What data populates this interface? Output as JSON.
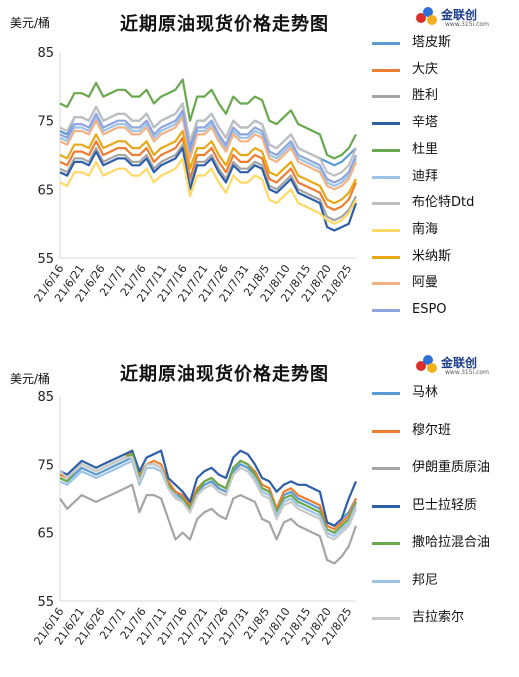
{
  "charts": [
    {
      "title": "近期原油现货价格走势图",
      "unit": "美元/桶",
      "logo": {
        "name": "金联创",
        "sub": "www.315i.com"
      }
    },
    {
      "title": "近期原油现货价格走势图",
      "unit": "美元/桶",
      "logo": {
        "name": "金联创",
        "sub": "www.315i.com"
      }
    }
  ],
  "chart_data": [
    {
      "type": "line",
      "title": "近期原油现货价格走势图",
      "ylabel": "美元/桶",
      "ylim": [
        55,
        85
      ],
      "yticks": [
        55,
        65,
        75,
        85
      ],
      "grid": false,
      "legend_position": "right",
      "x_tick_labels": [
        "21/6/16",
        "21/6/21",
        "21/6/26",
        "21/7/1",
        "21/7/6",
        "21/7/11",
        "21/7/16",
        "21/7/21",
        "21/7/26",
        "21/7/31",
        "21/8/5",
        "21/8/10",
        "21/8/15",
        "21/8/20",
        "21/8/25"
      ],
      "series": [
        {
          "name": "塔皮斯",
          "color": "#5b9bd5",
          "values": [
            73.5,
            73.0,
            75.5,
            75.5,
            75.0,
            77.0,
            75.0,
            75.5,
            76.0,
            76.0,
            75.0,
            75.0,
            76.0,
            74.0,
            75.0,
            75.5,
            76.0,
            77.5,
            71.0,
            75.0,
            75.0,
            76.0,
            74.0,
            72.5,
            75.0,
            74.0,
            74.0,
            75.0,
            74.5,
            71.5,
            71.0,
            72.0,
            73.0,
            71.0,
            70.5,
            70.0,
            69.5,
            69.0,
            68.5,
            69.0,
            70.0,
            71.0
          ]
        },
        {
          "name": "大庆",
          "color": "#ed7d31",
          "values": [
            69.0,
            68.5,
            70.5,
            70.5,
            70.0,
            72.0,
            70.0,
            70.5,
            71.0,
            71.0,
            70.0,
            70.0,
            71.0,
            69.0,
            70.0,
            70.5,
            71.0,
            72.5,
            66.5,
            70.0,
            70.0,
            71.0,
            69.0,
            67.5,
            70.0,
            69.0,
            69.0,
            70.0,
            69.5,
            66.5,
            66.0,
            67.0,
            68.0,
            66.0,
            65.5,
            65.0,
            64.5,
            62.5,
            62.0,
            62.5,
            63.5,
            66.0
          ]
        },
        {
          "name": "胜利",
          "color": "#a5a5a5",
          "values": [
            68.0,
            67.5,
            69.5,
            69.5,
            69.0,
            71.0,
            69.0,
            69.5,
            70.0,
            70.0,
            69.0,
            69.0,
            70.0,
            68.0,
            69.0,
            69.5,
            70.0,
            71.5,
            65.5,
            69.0,
            69.0,
            70.0,
            68.0,
            66.5,
            69.0,
            68.0,
            68.0,
            69.0,
            68.5,
            65.5,
            65.0,
            66.0,
            67.0,
            65.0,
            64.5,
            64.0,
            63.5,
            61.0,
            60.5,
            61.0,
            62.0,
            64.0
          ]
        },
        {
          "name": "辛塔",
          "color": "#2e5ea8",
          "values": [
            67.5,
            67.0,
            69.0,
            69.0,
            68.5,
            70.5,
            68.5,
            69.0,
            69.5,
            69.5,
            68.5,
            68.5,
            69.5,
            67.5,
            68.5,
            69.0,
            69.5,
            71.0,
            65.0,
            68.5,
            68.5,
            69.5,
            67.5,
            66.0,
            68.5,
            67.5,
            67.5,
            68.5,
            68.0,
            65.0,
            64.5,
            65.5,
            66.5,
            64.5,
            64.0,
            63.5,
            63.0,
            59.5,
            59.0,
            59.5,
            60.0,
            63.0
          ]
        },
        {
          "name": "杜里",
          "color": "#6aa84f",
          "values": [
            77.5,
            77.0,
            79.0,
            79.0,
            78.5,
            80.5,
            78.5,
            79.0,
            79.5,
            79.5,
            78.5,
            78.5,
            79.5,
            77.5,
            78.5,
            79.0,
            79.5,
            81.0,
            75.0,
            78.5,
            78.5,
            79.5,
            77.5,
            76.0,
            78.5,
            77.5,
            77.5,
            78.5,
            78.0,
            75.0,
            74.5,
            75.5,
            76.5,
            74.5,
            74.0,
            73.5,
            73.0,
            70.0,
            69.5,
            70.0,
            71.0,
            73.0
          ]
        },
        {
          "name": "迪拜",
          "color": "#9dc3e6",
          "values": [
            72.5,
            72.0,
            74.0,
            74.0,
            73.5,
            75.5,
            73.5,
            74.0,
            74.5,
            74.5,
            73.5,
            73.5,
            74.5,
            72.5,
            73.5,
            74.0,
            74.5,
            76.0,
            70.0,
            73.5,
            73.5,
            74.5,
            72.5,
            71.0,
            73.5,
            72.5,
            72.5,
            73.5,
            73.0,
            70.0,
            69.5,
            70.5,
            71.5,
            69.5,
            69.0,
            68.5,
            68.0,
            66.0,
            65.5,
            66.0,
            67.0,
            69.5
          ]
        },
        {
          "name": "布伦特Dtd",
          "color": "#bfbfbf",
          "values": [
            74.0,
            73.5,
            75.5,
            75.5,
            75.0,
            77.0,
            75.0,
            75.5,
            76.0,
            76.0,
            75.0,
            75.0,
            76.0,
            74.0,
            75.0,
            75.5,
            76.0,
            77.5,
            72.0,
            75.0,
            75.0,
            76.0,
            74.0,
            72.5,
            75.0,
            74.0,
            74.0,
            75.0,
            74.5,
            71.5,
            71.0,
            72.0,
            73.0,
            71.0,
            70.5,
            70.0,
            69.5,
            67.5,
            67.0,
            67.5,
            68.5,
            71.0
          ]
        },
        {
          "name": "南海",
          "color": "#ffd966",
          "values": [
            66.0,
            65.5,
            67.5,
            67.5,
            67.0,
            69.0,
            67.0,
            67.5,
            68.0,
            68.0,
            67.0,
            67.0,
            68.0,
            66.0,
            67.0,
            67.5,
            68.0,
            69.5,
            64.0,
            67.0,
            67.0,
            68.0,
            66.0,
            64.5,
            67.0,
            66.0,
            66.0,
            67.0,
            66.5,
            63.5,
            63.0,
            64.0,
            65.0,
            63.0,
            62.5,
            62.0,
            61.5,
            60.5,
            60.0,
            60.5,
            61.5,
            63.5
          ]
        },
        {
          "name": "米纳斯",
          "color": "#e6a817",
          "values": [
            70.0,
            69.5,
            71.5,
            71.5,
            71.0,
            73.0,
            71.0,
            71.5,
            72.0,
            72.0,
            71.0,
            71.0,
            72.0,
            70.0,
            71.0,
            71.5,
            72.0,
            73.5,
            68.0,
            71.0,
            71.0,
            72.0,
            70.0,
            68.5,
            71.0,
            70.0,
            70.0,
            71.0,
            70.5,
            67.5,
            67.0,
            68.0,
            69.0,
            67.0,
            66.5,
            66.0,
            65.5,
            63.5,
            63.0,
            63.5,
            64.5,
            66.5
          ]
        },
        {
          "name": "阿曼",
          "color": "#f4b183",
          "values": [
            72.0,
            71.5,
            73.5,
            73.5,
            73.0,
            75.0,
            73.0,
            73.5,
            74.0,
            74.0,
            73.0,
            73.0,
            74.0,
            72.0,
            73.0,
            73.5,
            74.0,
            75.5,
            69.5,
            73.0,
            73.0,
            74.0,
            72.0,
            70.5,
            73.0,
            72.0,
            72.0,
            73.0,
            72.5,
            69.5,
            69.0,
            70.0,
            71.0,
            69.0,
            68.5,
            68.0,
            67.5,
            65.5,
            65.0,
            65.5,
            66.5,
            69.0
          ]
        },
        {
          "name": "ESPO",
          "color": "#8fa5e0",
          "values": [
            73.0,
            72.5,
            74.5,
            74.5,
            74.0,
            76.0,
            74.0,
            74.5,
            75.0,
            75.0,
            74.0,
            74.0,
            75.0,
            73.0,
            74.0,
            74.5,
            75.0,
            76.5,
            70.5,
            74.0,
            74.0,
            75.0,
            73.0,
            71.5,
            74.0,
            73.0,
            73.0,
            74.0,
            73.5,
            70.5,
            70.0,
            71.0,
            72.0,
            70.0,
            69.5,
            69.0,
            68.5,
            66.5,
            66.0,
            66.5,
            67.5,
            70.0
          ]
        }
      ]
    },
    {
      "type": "line",
      "title": "近期原油现货价格走势图",
      "ylabel": "美元/桶",
      "ylim": [
        55,
        85
      ],
      "yticks": [
        55,
        65,
        75,
        85
      ],
      "grid": false,
      "legend_position": "right",
      "x_tick_labels": [
        "21/6/16",
        "21/6/21",
        "21/6/26",
        "21/7/1",
        "21/7/6",
        "21/7/11",
        "21/7/16",
        "21/7/21",
        "21/7/26",
        "21/7/31",
        "21/8/5",
        "21/8/10",
        "21/8/15",
        "21/8/20",
        "21/8/25"
      ],
      "series": [
        {
          "name": "马林",
          "color": "#5b9bd5",
          "values": [
            73.0,
            72.5,
            73.5,
            74.5,
            74.0,
            73.5,
            74.0,
            74.5,
            75.0,
            75.5,
            76.0,
            72.5,
            75.0,
            75.0,
            74.5,
            72.0,
            71.0,
            70.0,
            68.5,
            71.0,
            72.0,
            72.5,
            71.5,
            71.0,
            74.0,
            75.0,
            74.5,
            73.5,
            71.5,
            71.0,
            68.0,
            70.5,
            71.0,
            70.0,
            69.5,
            69.0,
            68.5,
            66.5,
            66.0,
            67.0,
            68.0,
            70.0
          ]
        },
        {
          "name": "穆尔班",
          "color": "#ed7d31",
          "values": [
            73.5,
            73.0,
            74.0,
            75.0,
            74.5,
            74.0,
            74.5,
            75.0,
            75.5,
            76.0,
            77.0,
            73.5,
            75.0,
            75.5,
            75.0,
            72.5,
            71.0,
            70.5,
            69.0,
            71.5,
            72.5,
            73.0,
            72.0,
            71.5,
            74.5,
            75.5,
            75.0,
            74.0,
            72.0,
            71.5,
            68.5,
            71.0,
            71.5,
            70.5,
            70.0,
            69.5,
            69.0,
            66.0,
            65.5,
            66.5,
            67.5,
            70.0
          ]
        },
        {
          "name": "伊朗重质原油",
          "color": "#a5a5a5",
          "values": [
            70.0,
            68.5,
            69.5,
            70.5,
            70.0,
            69.5,
            70.0,
            70.5,
            71.0,
            71.5,
            72.0,
            68.0,
            70.5,
            70.5,
            70.0,
            67.0,
            64.0,
            65.0,
            64.0,
            67.0,
            68.0,
            68.5,
            67.5,
            67.0,
            70.0,
            70.5,
            70.0,
            69.5,
            67.0,
            66.5,
            64.0,
            66.5,
            67.0,
            66.0,
            65.5,
            65.0,
            64.5,
            61.0,
            60.5,
            61.5,
            63.0,
            66.0
          ]
        },
        {
          "name": "巴士拉轻质",
          "color": "#2e5ea8",
          "values": [
            74.0,
            73.5,
            74.5,
            75.5,
            75.0,
            74.5,
            75.0,
            75.5,
            76.0,
            76.5,
            77.0,
            74.0,
            76.0,
            76.5,
            77.0,
            73.0,
            72.0,
            71.0,
            69.5,
            73.0,
            74.0,
            74.5,
            73.5,
            73.0,
            76.0,
            77.0,
            76.5,
            75.0,
            73.0,
            72.5,
            71.0,
            72.0,
            72.5,
            72.0,
            72.0,
            71.5,
            71.0,
            66.5,
            66.0,
            67.0,
            70.0,
            72.5
          ]
        },
        {
          "name": "撒哈拉混合油",
          "color": "#6aa84f",
          "values": [
            73.0,
            72.5,
            74.0,
            75.0,
            74.5,
            74.0,
            74.5,
            75.0,
            75.5,
            76.0,
            76.5,
            73.0,
            75.0,
            75.0,
            74.5,
            72.0,
            70.5,
            70.0,
            68.5,
            71.0,
            72.5,
            73.0,
            72.0,
            71.5,
            74.5,
            75.5,
            75.0,
            73.5,
            71.5,
            71.0,
            68.0,
            70.0,
            70.5,
            69.5,
            69.0,
            68.5,
            68.0,
            65.5,
            65.0,
            66.0,
            67.0,
            69.5
          ]
        },
        {
          "name": "邦尼",
          "color": "#9dc3e6",
          "values": [
            72.5,
            72.0,
            73.0,
            74.0,
            73.5,
            73.0,
            73.5,
            74.0,
            74.5,
            75.0,
            75.5,
            72.0,
            74.5,
            74.5,
            74.0,
            71.5,
            70.5,
            69.5,
            68.0,
            70.5,
            71.5,
            72.0,
            71.0,
            70.5,
            73.5,
            74.5,
            74.0,
            73.0,
            71.0,
            70.5,
            67.5,
            69.5,
            70.0,
            69.0,
            68.5,
            68.0,
            67.5,
            65.0,
            64.5,
            65.5,
            66.5,
            69.0
          ]
        },
        {
          "name": "吉拉索尔",
          "color": "#c9c9c9",
          "values": [
            74.0,
            73.0,
            74.0,
            75.0,
            74.5,
            74.0,
            74.5,
            75.0,
            75.5,
            76.0,
            76.0,
            72.5,
            75.0,
            75.0,
            74.5,
            71.5,
            70.0,
            69.5,
            68.0,
            70.5,
            71.5,
            72.0,
            71.0,
            70.5,
            73.5,
            74.5,
            74.0,
            72.5,
            70.5,
            70.0,
            67.0,
            69.0,
            69.5,
            68.5,
            68.0,
            67.5,
            67.0,
            64.5,
            64.0,
            65.0,
            66.0,
            68.5
          ]
        }
      ]
    }
  ]
}
